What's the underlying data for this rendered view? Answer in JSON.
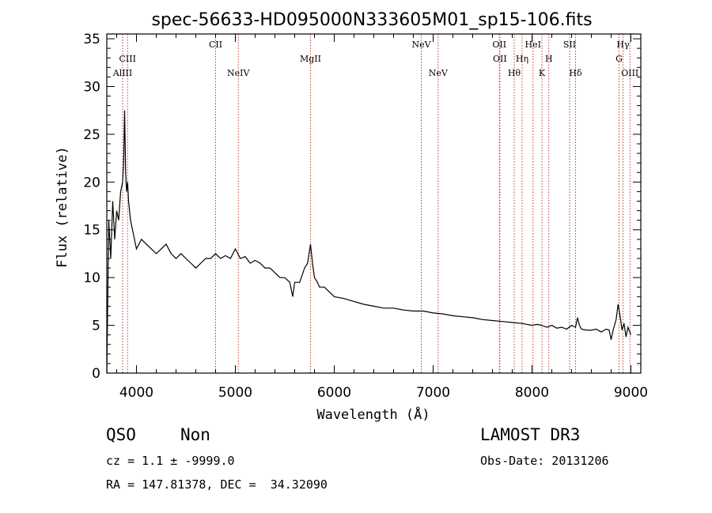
{
  "chart_data": {
    "type": "line",
    "title": "spec-56633-HD095000N333605M01_sp15-106.fits",
    "xlabel": "Wavelength (Å)",
    "ylabel": "Flux (relative)",
    "xlim": [
      3700,
      9100
    ],
    "ylim": [
      0,
      35.5
    ],
    "xticks": [
      4000,
      5000,
      6000,
      7000,
      8000,
      9000
    ],
    "yticks": [
      0,
      5,
      10,
      15,
      20,
      25,
      30,
      35
    ],
    "grid": false,
    "series": [
      {
        "x": [
          3700,
          3720,
          3740,
          3760,
          3780,
          3800,
          3820,
          3840,
          3860,
          3870,
          3880,
          3890,
          3900,
          3910,
          3920,
          3940,
          3960,
          3980,
          4000,
          4050,
          4100,
          4150,
          4200,
          4250,
          4300,
          4350,
          4400,
          4450,
          4500,
          4550,
          4600,
          4650,
          4700,
          4750,
          4800,
          4850,
          4900,
          4950,
          5000,
          5050,
          5100,
          5150,
          5200,
          5250,
          5300,
          5350,
          5400,
          5450,
          5500,
          5550,
          5580,
          5600,
          5650,
          5700,
          5730,
          5760,
          5780,
          5800,
          5830,
          5850,
          5900,
          5950,
          6000,
          6100,
          6200,
          6300,
          6400,
          6500,
          6600,
          6700,
          6800,
          6900,
          7000,
          7100,
          7200,
          7300,
          7400,
          7500,
          7600,
          7700,
          7800,
          7900,
          8000,
          8050,
          8100,
          8150,
          8200,
          8250,
          8300,
          8350,
          8400,
          8440,
          8460,
          8480,
          8500,
          8550,
          8600,
          8650,
          8700,
          8750,
          8780,
          8800,
          8820,
          8850,
          8870,
          8890,
          8910,
          8930,
          8950,
          8970,
          9000
        ],
        "values": [
          0,
          16,
          12,
          18,
          14,
          17,
          16,
          19,
          20,
          22,
          27.5,
          21,
          19,
          20,
          18,
          16,
          15,
          14,
          13,
          14,
          13.5,
          13,
          12.5,
          13,
          13.5,
          12.5,
          12,
          12.5,
          12,
          11.5,
          11,
          11.5,
          12,
          12,
          12.5,
          12,
          12.3,
          12,
          13,
          12,
          12.2,
          11.5,
          11.8,
          11.5,
          11,
          11,
          10.5,
          10,
          10,
          9.5,
          8,
          9.5,
          9.5,
          11,
          11.5,
          13.5,
          11.5,
          10,
          9.5,
          9,
          9,
          8.5,
          8,
          7.8,
          7.5,
          7.2,
          7,
          6.8,
          6.8,
          6.6,
          6.5,
          6.5,
          6.3,
          6.2,
          6,
          5.9,
          5.8,
          5.6,
          5.5,
          5.4,
          5.3,
          5.2,
          5,
          5.1,
          5,
          4.8,
          5,
          4.7,
          4.8,
          4.6,
          5,
          4.8,
          5.8,
          5,
          4.6,
          4.5,
          4.5,
          4.6,
          4.3,
          4.6,
          4.5,
          3.5,
          4.5,
          5.6,
          7.2,
          6,
          4.5,
          5.2,
          3.8,
          4.8,
          4
        ]
      }
    ],
    "lines": [
      {
        "name": "AlIII",
        "x": 3860,
        "row": 3
      },
      {
        "name": "CIII",
        "x": 3910,
        "row": 2
      },
      {
        "name": "CII",
        "x": 4800,
        "row": 1
      },
      {
        "name": "NeIV",
        "x": 5030,
        "row": 3
      },
      {
        "name": "MgII",
        "x": 5760,
        "row": 2
      },
      {
        "name": "NeV",
        "x": 6880,
        "row": 1
      },
      {
        "name": "NeV",
        "x": 7050,
        "row": 3
      },
      {
        "name": "OII",
        "x": 7670,
        "row": 1
      },
      {
        "name": "OII",
        "x": 7675,
        "row": 2
      },
      {
        "name": "Hθ",
        "x": 7820,
        "row": 3
      },
      {
        "name": "Hη",
        "x": 7900,
        "row": 2
      },
      {
        "name": "HeI",
        "x": 8010,
        "row": 1
      },
      {
        "name": "K",
        "x": 8100,
        "row": 3
      },
      {
        "name": "H",
        "x": 8170,
        "row": 2
      },
      {
        "name": "SII",
        "x": 8380,
        "row": 1
      },
      {
        "name": "Hδ",
        "x": 8440,
        "row": 3
      },
      {
        "name": "G",
        "x": 8880,
        "row": 2
      },
      {
        "name": "Hγ",
        "x": 8920,
        "row": 1
      },
      {
        "name": "OIII",
        "x": 8990,
        "row": 3
      }
    ]
  },
  "info": {
    "class": "QSO",
    "subclass": "Non",
    "survey": "LAMOST DR3",
    "cz": "cz = 1.1 ± -9999.0",
    "obs_date": "Obs-Date: 20131206",
    "coords": "RA = 147.81378, DEC =  34.32090"
  },
  "colors": {
    "spectrum": "#000000",
    "line_marker": "#c0392b",
    "axes": "#000000"
  }
}
